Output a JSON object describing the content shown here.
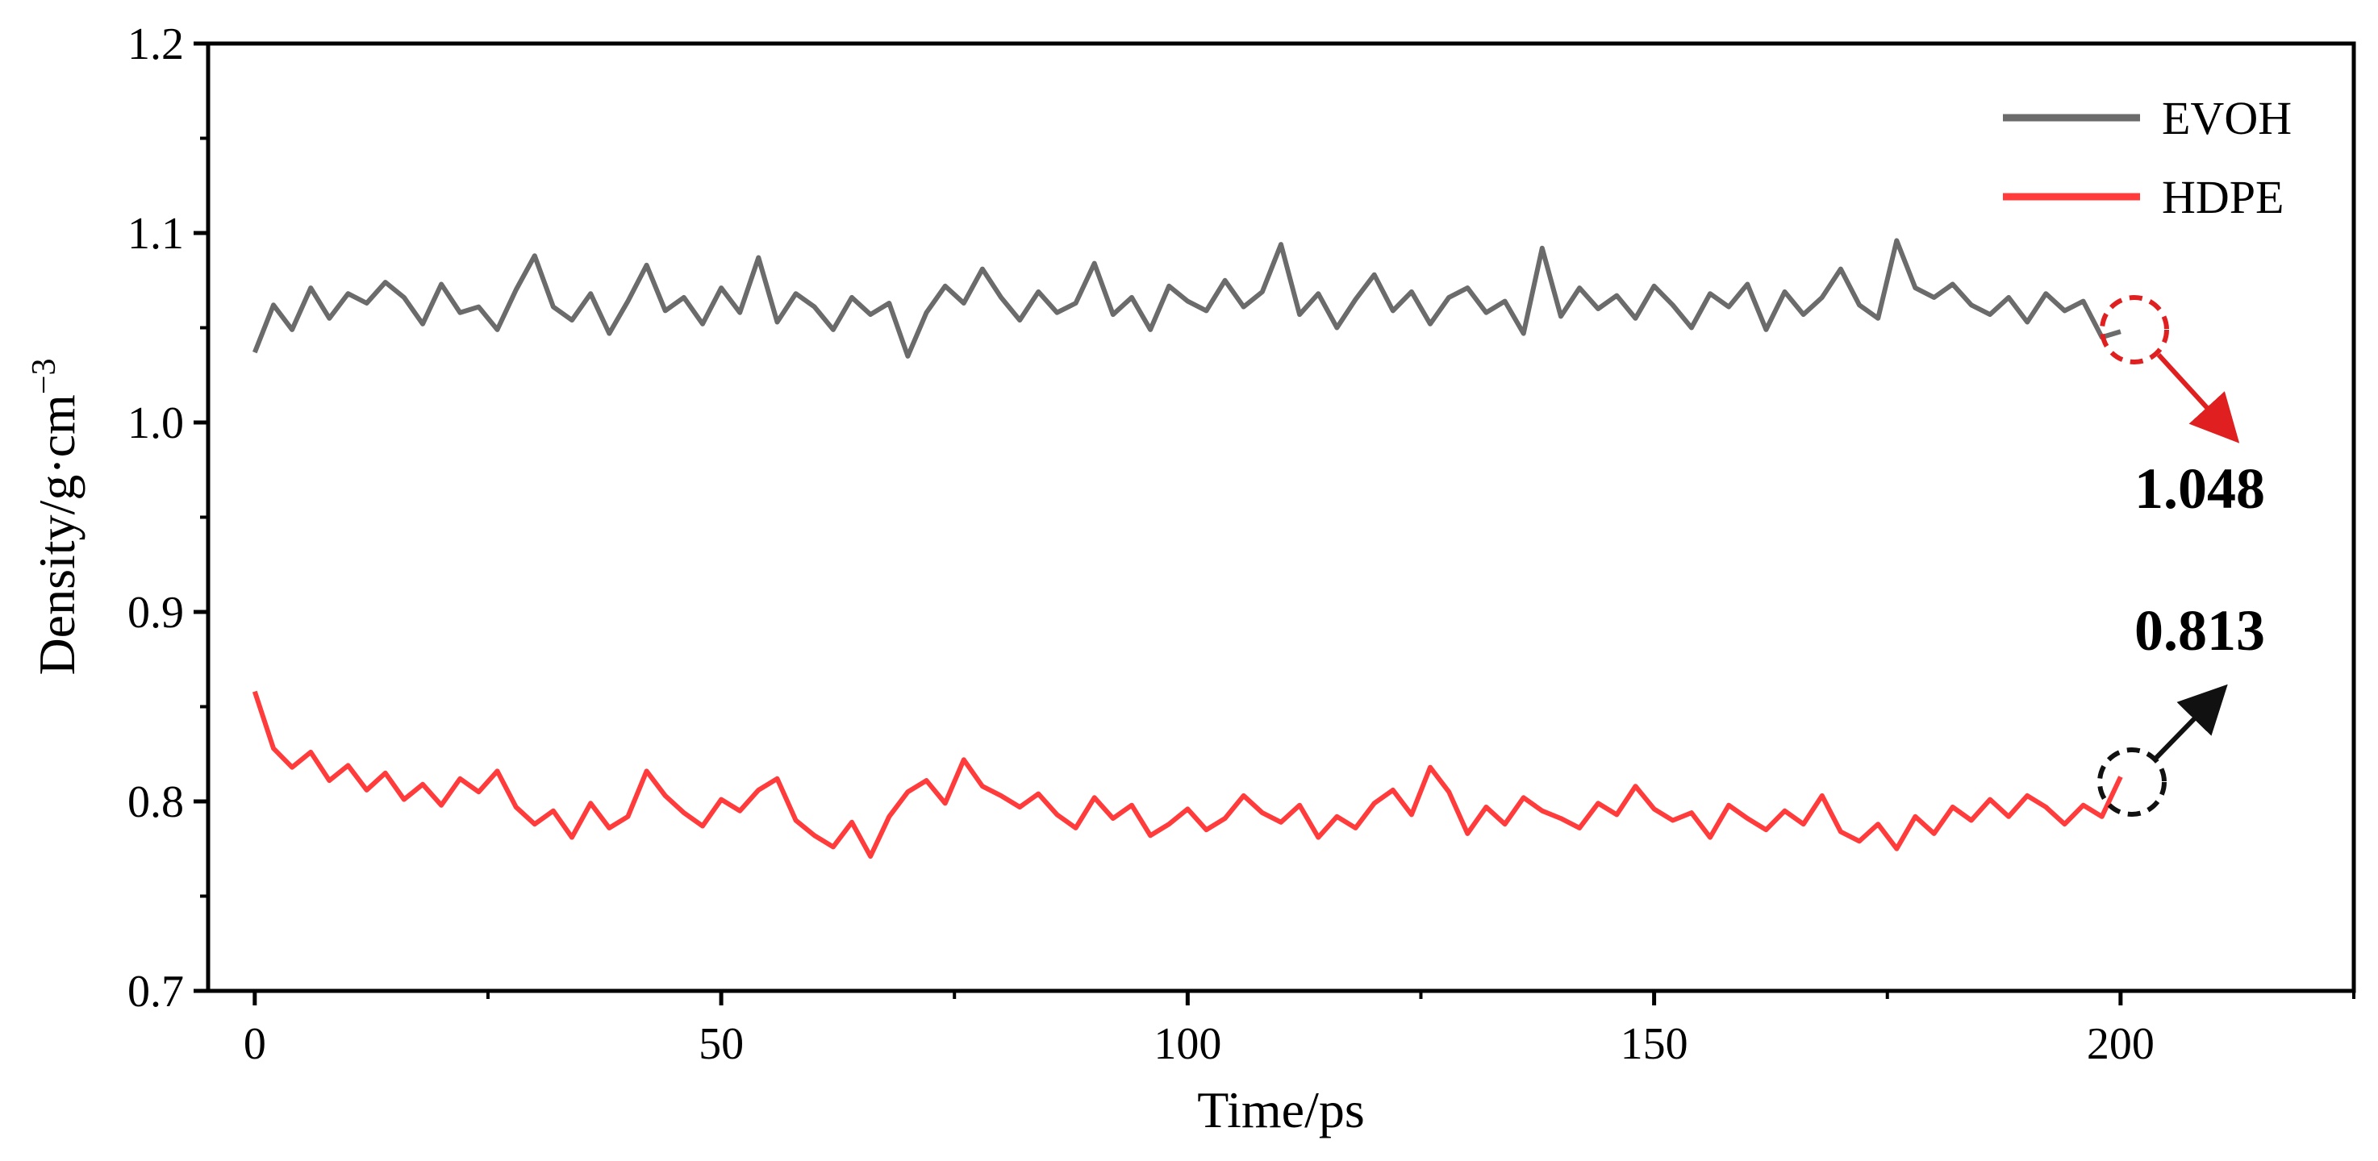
{
  "chart_data": {
    "type": "line",
    "title": "",
    "xlabel": "Time/ps",
    "ylabel_main": "Density/g·cm",
    "ylabel_sup": "−3",
    "xlim": [
      -5,
      225
    ],
    "ylim": [
      0.7,
      1.2
    ],
    "x_ticks": [
      "0",
      "50",
      "100",
      "150",
      "200"
    ],
    "y_ticks": [
      "0.7",
      "0.8",
      "0.9",
      "1.0",
      "1.1",
      "1.2"
    ],
    "grid": false,
    "legend": "top-right",
    "series": [
      {
        "name": "EVOH",
        "color": "#6b6b6b",
        "x": [
          0,
          2,
          4,
          6,
          8,
          10,
          12,
          14,
          16,
          18,
          20,
          22,
          24,
          26,
          28,
          30,
          32,
          34,
          36,
          38,
          40,
          42,
          44,
          46,
          48,
          50,
          52,
          54,
          56,
          58,
          60,
          62,
          64,
          66,
          68,
          70,
          72,
          74,
          76,
          78,
          80,
          82,
          84,
          86,
          88,
          90,
          92,
          94,
          96,
          98,
          100,
          102,
          104,
          106,
          108,
          110,
          112,
          114,
          116,
          118,
          120,
          122,
          124,
          126,
          128,
          130,
          132,
          134,
          136,
          138,
          140,
          142,
          144,
          146,
          148,
          150,
          152,
          154,
          156,
          158,
          160,
          162,
          164,
          166,
          168,
          170,
          172,
          174,
          176,
          178,
          180,
          182,
          184,
          186,
          188,
          190,
          192,
          194,
          196,
          198,
          200
        ],
        "y": [
          1.037,
          1.062,
          1.049,
          1.071,
          1.055,
          1.068,
          1.063,
          1.074,
          1.066,
          1.052,
          1.073,
          1.058,
          1.061,
          1.049,
          1.07,
          1.088,
          1.061,
          1.054,
          1.068,
          1.047,
          1.064,
          1.083,
          1.059,
          1.066,
          1.052,
          1.071,
          1.058,
          1.087,
          1.053,
          1.068,
          1.061,
          1.049,
          1.066,
          1.057,
          1.063,
          1.035,
          1.058,
          1.072,
          1.063,
          1.081,
          1.066,
          1.054,
          1.069,
          1.058,
          1.063,
          1.084,
          1.057,
          1.066,
          1.049,
          1.072,
          1.064,
          1.059,
          1.075,
          1.061,
          1.069,
          1.094,
          1.057,
          1.068,
          1.05,
          1.065,
          1.078,
          1.059,
          1.069,
          1.052,
          1.066,
          1.071,
          1.058,
          1.064,
          1.047,
          1.092,
          1.056,
          1.071,
          1.06,
          1.067,
          1.055,
          1.072,
          1.062,
          1.05,
          1.068,
          1.061,
          1.073,
          1.049,
          1.069,
          1.057,
          1.066,
          1.081,
          1.062,
          1.055,
          1.096,
          1.071,
          1.066,
          1.073,
          1.062,
          1.057,
          1.066,
          1.053,
          1.068,
          1.059,
          1.064,
          1.045,
          1.048
        ]
      },
      {
        "name": "HDPE",
        "color": "#ff3b3b",
        "x": [
          0,
          2,
          4,
          6,
          8,
          10,
          12,
          14,
          16,
          18,
          20,
          22,
          24,
          26,
          28,
          30,
          32,
          34,
          36,
          38,
          40,
          42,
          44,
          46,
          48,
          50,
          52,
          54,
          56,
          58,
          60,
          62,
          64,
          66,
          68,
          70,
          72,
          74,
          76,
          78,
          80,
          82,
          84,
          86,
          88,
          90,
          92,
          94,
          96,
          98,
          100,
          102,
          104,
          106,
          108,
          110,
          112,
          114,
          116,
          118,
          120,
          122,
          124,
          126,
          128,
          130,
          132,
          134,
          136,
          138,
          140,
          142,
          144,
          146,
          148,
          150,
          152,
          154,
          156,
          158,
          160,
          162,
          164,
          166,
          168,
          170,
          172,
          174,
          176,
          178,
          180,
          182,
          184,
          186,
          188,
          190,
          192,
          194,
          196,
          198,
          200
        ],
        "y": [
          0.858,
          0.828,
          0.818,
          0.826,
          0.811,
          0.819,
          0.806,
          0.815,
          0.801,
          0.809,
          0.798,
          0.812,
          0.805,
          0.816,
          0.797,
          0.788,
          0.795,
          0.781,
          0.799,
          0.786,
          0.792,
          0.816,
          0.803,
          0.794,
          0.787,
          0.801,
          0.795,
          0.806,
          0.812,
          0.79,
          0.782,
          0.776,
          0.789,
          0.771,
          0.792,
          0.805,
          0.811,
          0.799,
          0.822,
          0.808,
          0.803,
          0.797,
          0.804,
          0.793,
          0.786,
          0.802,
          0.791,
          0.798,
          0.782,
          0.788,
          0.796,
          0.785,
          0.791,
          0.803,
          0.794,
          0.789,
          0.798,
          0.781,
          0.792,
          0.786,
          0.799,
          0.806,
          0.793,
          0.818,
          0.805,
          0.783,
          0.797,
          0.788,
          0.802,
          0.795,
          0.791,
          0.786,
          0.799,
          0.793,
          0.808,
          0.796,
          0.79,
          0.794,
          0.781,
          0.798,
          0.791,
          0.785,
          0.795,
          0.788,
          0.803,
          0.784,
          0.779,
          0.788,
          0.775,
          0.792,
          0.783,
          0.797,
          0.79,
          0.801,
          0.792,
          0.803,
          0.797,
          0.788,
          0.798,
          0.792,
          0.813
        ]
      }
    ],
    "annotations": [
      {
        "label": "1.048",
        "series": "EVOH",
        "at": [
          201,
          1.048
        ],
        "circle_color": "#e02020",
        "arrow": "down-right"
      },
      {
        "label": "0.813",
        "series": "HDPE",
        "at": [
          201,
          0.811
        ],
        "circle_color": "#111111",
        "arrow": "up-right"
      }
    ]
  }
}
